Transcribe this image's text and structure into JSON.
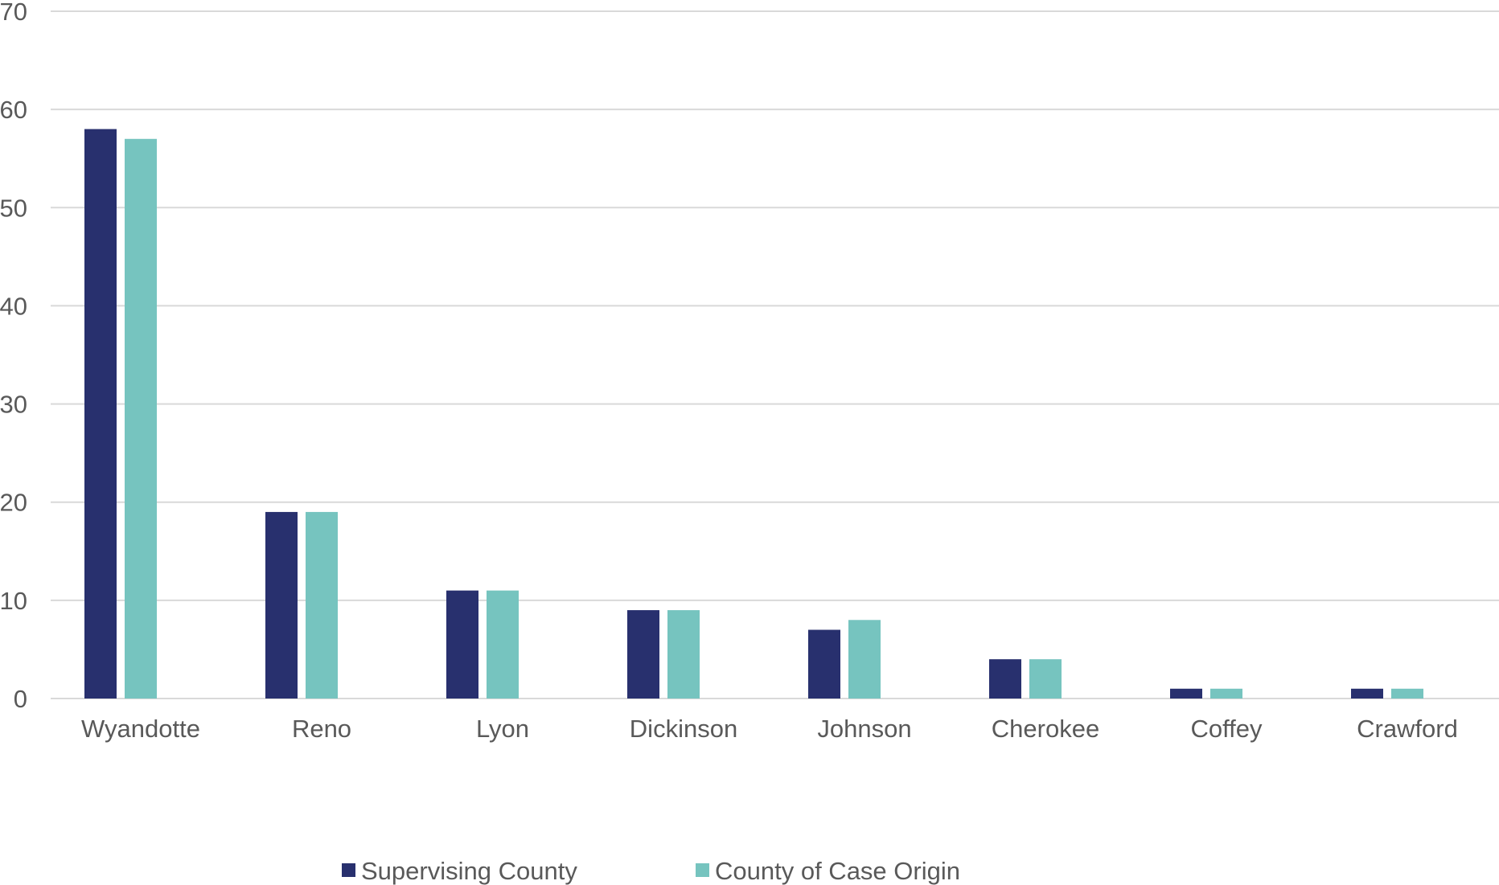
{
  "chart_data": {
    "type": "bar",
    "title": "",
    "xlabel": "",
    "ylabel": "",
    "categories": [
      "Wyandotte",
      "Reno",
      "Lyon",
      "Dickinson",
      "Johnson",
      "Cherokee",
      "Coffey",
      "Crawford"
    ],
    "series": [
      {
        "name": "Supervising County",
        "color": "#28306e",
        "values": [
          58,
          19,
          11,
          9,
          7,
          4,
          1,
          1
        ]
      },
      {
        "name": "County of Case Origin",
        "color": "#76c4bf",
        "values": [
          57,
          19,
          11,
          9,
          8,
          4,
          1,
          1
        ]
      }
    ],
    "ylim": [
      0,
      70
    ],
    "yticks": [
      0,
      10,
      20,
      30,
      40,
      50,
      60,
      70
    ],
    "grid": true,
    "gridline_color": "#d9d9d9",
    "legend_position": "bottom"
  }
}
